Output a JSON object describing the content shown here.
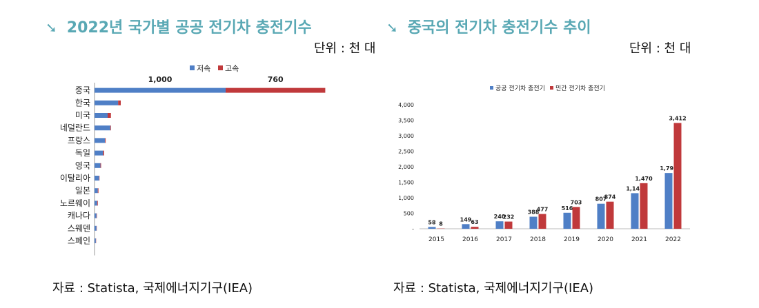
{
  "left": {
    "heading": "2022년 국가별 공공 전기차 충전기수",
    "unit": "단위 : 천 대",
    "source": "자료 : Statista, 국제에너지기구(IEA)",
    "colors": {
      "series1": "#4f7fc6",
      "series2": "#c0393b",
      "heading": "#59a8b4"
    }
  },
  "right": {
    "heading": "중국의 전기차 충전기수 추이",
    "unit": "단위 : 천 대",
    "source": "자료 : Statista, 국제에너지기구(IEA)"
  },
  "chart_data": [
    {
      "type": "bar",
      "orientation": "horizontal",
      "stacked": true,
      "categories": [
        "중국",
        "한국",
        "미국",
        "네덜란드",
        "프랑스",
        "독일",
        "영국",
        "이탈리아",
        "일본",
        "노르웨이",
        "캐나다",
        "스웨덴",
        "스페인"
      ],
      "series": [
        {
          "name": "저속",
          "color": "#4f7fc6",
          "values": [
            1000,
            180,
            100,
            120,
            80,
            65,
            45,
            35,
            25,
            20,
            15,
            15,
            10
          ]
        },
        {
          "name": "고속",
          "color": "#c0393b",
          "values": [
            760,
            20,
            25,
            5,
            5,
            8,
            5,
            3,
            5,
            5,
            3,
            2,
            2
          ]
        }
      ],
      "data_labels": [
        {
          "category": "중국",
          "series": "저속",
          "text": "1,000"
        },
        {
          "category": "중국",
          "series": "고속",
          "text": "760"
        }
      ],
      "xlim": [
        0,
        2000
      ],
      "xticks": [
        "0",
        "200",
        "400",
        "600",
        "800",
        "1,000",
        "1,200",
        "1,400",
        "1,600",
        "1,800",
        "2,000"
      ],
      "legend": "top"
    },
    {
      "type": "bar",
      "categories": [
        "2015",
        "2016",
        "2017",
        "2018",
        "2019",
        "2020",
        "2021",
        "2022"
      ],
      "series": [
        {
          "name": "공공 전기차 충전기",
          "color": "#4f7fc6",
          "values": [
            58,
            149,
            240,
            388,
            516,
            807,
            1147,
            1797
          ],
          "labels": [
            "58",
            "149",
            "240",
            "388",
            "516",
            "807",
            "1,147",
            "1,797"
          ]
        },
        {
          "name": "민간 전기차 충전기",
          "color": "#c0393b",
          "values": [
            8,
            63,
            232,
            477,
            703,
            874,
            1470,
            3412
          ],
          "labels": [
            "8",
            "63",
            "232",
            "477",
            "703",
            "874",
            "1,470",
            "3,412"
          ]
        }
      ],
      "ylim": [
        0,
        4000
      ],
      "yticks": [
        "-",
        "500",
        "1,000",
        "1,500",
        "2,000",
        "2,500",
        "3,000",
        "3,500",
        "4,000"
      ],
      "legend": "top"
    }
  ]
}
